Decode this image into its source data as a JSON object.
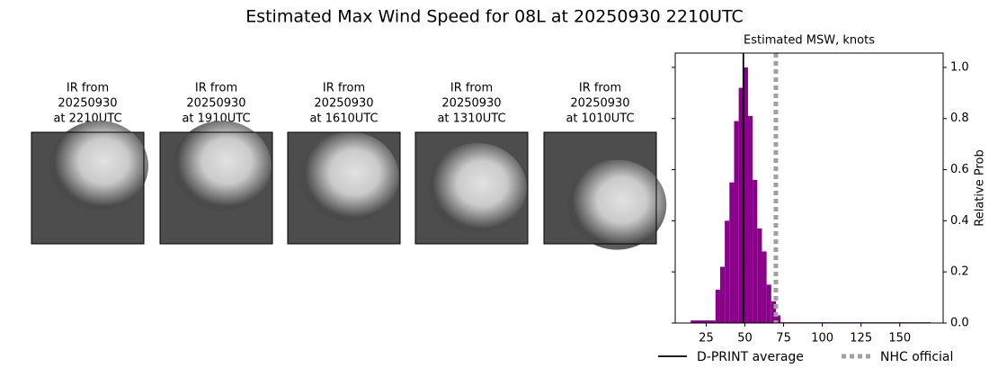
{
  "title": "Estimated Max Wind Speed for 08L at 20250930 2210UTC",
  "panels": [
    {
      "lines": [
        "IR from",
        "20250930",
        "at 2210UTC"
      ]
    },
    {
      "lines": [
        "IR from",
        "20250930",
        "at 1910UTC"
      ]
    },
    {
      "lines": [
        "IR from",
        "20250930",
        "at 1610UTC"
      ]
    },
    {
      "lines": [
        "IR from",
        "20250930",
        "at 1310UTC"
      ]
    },
    {
      "lines": [
        "IR from",
        "20250930",
        "at 1010UTC"
      ]
    }
  ],
  "chart_data": {
    "type": "histogram",
    "title": "Estimated MSW, knots",
    "y_label": "Relative Prob",
    "color": "#8b008b",
    "bins": [
      15,
      31,
      34,
      37,
      40,
      43,
      46,
      49,
      52,
      55,
      58,
      61,
      64,
      67,
      70,
      73,
      170
    ],
    "values": [
      0.01,
      0.13,
      0.22,
      0.4,
      0.55,
      0.79,
      0.92,
      1.0,
      0.81,
      0.56,
      0.37,
      0.28,
      0.15,
      0.085,
      0.03,
      0.003
    ],
    "xlim": [
      5,
      178
    ],
    "xticks": [
      25,
      50,
      75,
      100,
      125,
      150
    ],
    "ylim": [
      0,
      1.056
    ],
    "yticks": [
      {
        "value": 0,
        "label": "0.0"
      },
      {
        "value": 0.2,
        "label": "0.2"
      },
      {
        "value": 0.4,
        "label": "0.4"
      },
      {
        "value": 0.6,
        "label": "0.6"
      },
      {
        "value": 0.8,
        "label": "0.8"
      },
      {
        "value": 1.0,
        "label": "1.0"
      }
    ],
    "lines": [
      {
        "name": "D-PRINT average",
        "value": 49,
        "color": "#000000",
        "style": "solid"
      },
      {
        "name": "NHC official",
        "value": 70,
        "color": "#a0a0a0",
        "style": "dotted"
      }
    ]
  }
}
